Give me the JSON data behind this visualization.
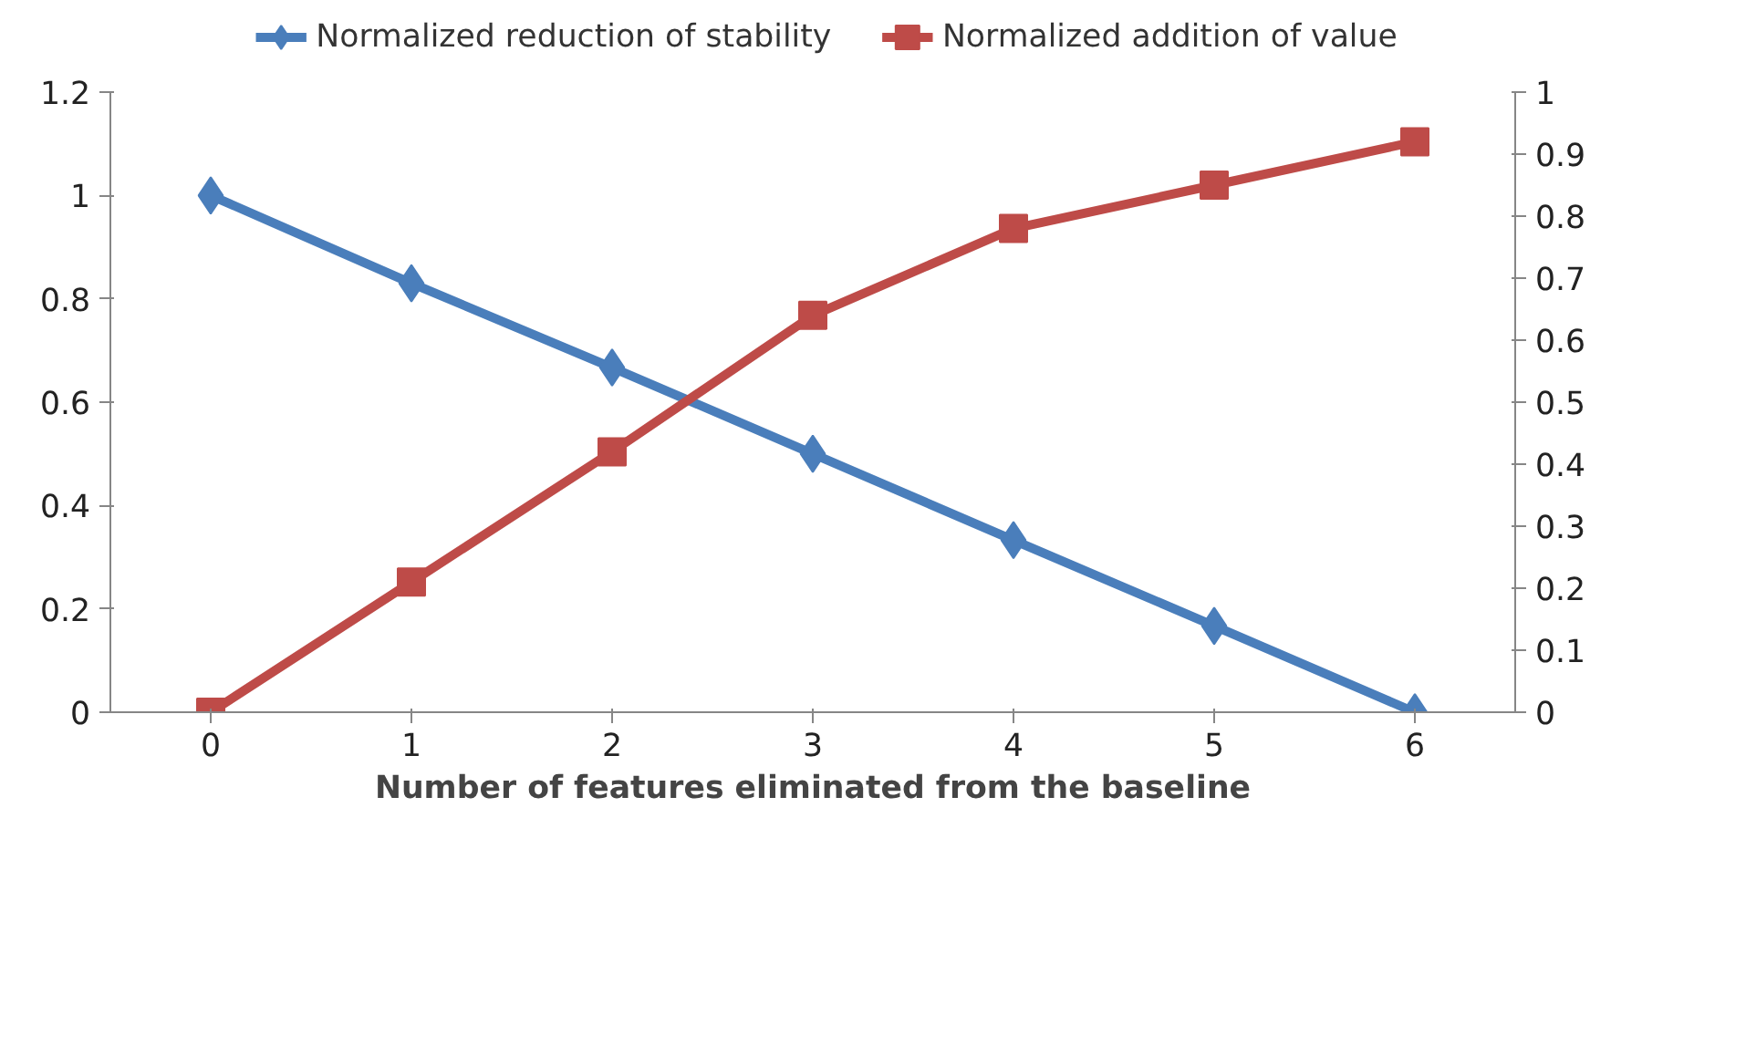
{
  "chart_data": {
    "type": "line",
    "xlabel": "Number of features eliminated from the baseline",
    "categories": [
      "0",
      "1",
      "2",
      "3",
      "4",
      "5",
      "6"
    ],
    "series": [
      {
        "name": "Normalized reduction of stability",
        "color": "#4a7ebb",
        "marker": "diamond",
        "values": [
          1,
          0.83,
          0.667,
          0.5,
          0.333,
          0.167,
          0
        ]
      },
      {
        "name": "Normalized addition of value",
        "color": "#be4b48",
        "marker": "square",
        "axis": "y2",
        "values": [
          0,
          0.21,
          0.42,
          0.64,
          0.78,
          0.85,
          0.92
        ]
      }
    ],
    "ylim": [
      0,
      1.2
    ],
    "yticks": [
      0,
      0.2,
      0.4,
      0.6,
      0.8,
      1,
      1.2
    ],
    "y2lim": [
      0,
      1
    ],
    "y2ticks": [
      0,
      0.1,
      0.2,
      0.3,
      0.4,
      0.5,
      0.6,
      0.7,
      0.8,
      0.9,
      1
    ],
    "legend": "top",
    "grid": false
  }
}
